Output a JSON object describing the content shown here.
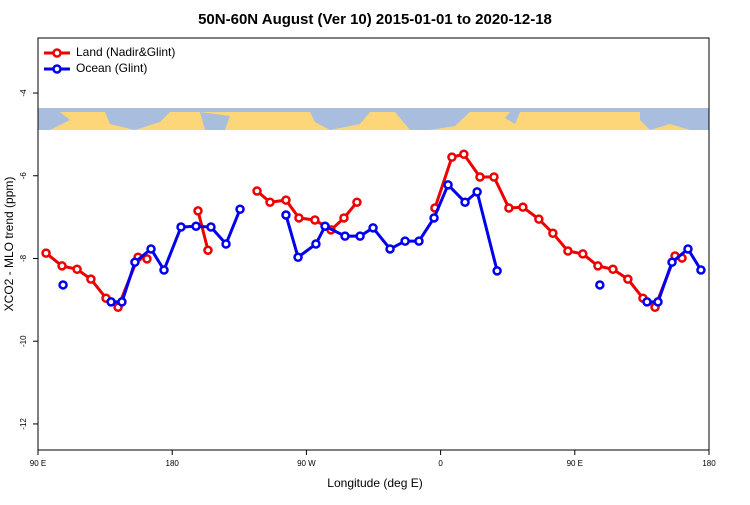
{
  "chart_data": {
    "type": "line",
    "title": "50N-60N August (Ver 10)   2015-01-01 to 2020-12-18",
    "x_label": "Longitude (deg E)",
    "y_label": "XCO2 - MLO trend (ppm)",
    "xlim": [
      90,
      540
    ],
    "xticks": [
      {
        "value": 90,
        "label": "90 E"
      },
      {
        "value": 180,
        "label": "180"
      },
      {
        "value": 270,
        "label": "90 W"
      },
      {
        "value": 360,
        "label": "0"
      },
      {
        "value": 450,
        "label": "90 E"
      },
      {
        "value": 540,
        "label": "180"
      }
    ],
    "ylim": [
      -12.63,
      -2.67
    ],
    "yticks": [
      -12,
      -10,
      -8,
      -6,
      -4
    ],
    "legend": "top-left",
    "series": [
      {
        "name": "Land (Nadir&Glint)",
        "color": "#ee0000",
        "x": [
          95.4,
          106.1,
          116.2,
          125.5,
          135.6,
          143.7,
          157.1,
          163.1,
          null,
          197.3,
          204.0,
          null,
          236.9,
          245.6,
          256.3,
          265.0,
          275.7,
          286.5,
          295.2,
          303.9,
          null,
          356.2,
          367.6,
          375.6,
          386.4,
          395.8,
          405.8,
          415.2,
          425.9,
          435.3,
          445.4,
          455.4,
          465.5,
          475.6,
          485.6,
          495.7,
          503.8,
          517.2,
          521.9
        ],
        "values": [
          -7.87,
          -8.18,
          -8.26,
          -8.5,
          -8.96,
          -9.18,
          -7.97,
          -8.01,
          null,
          -6.85,
          -7.8,
          null,
          -6.37,
          -6.64,
          -6.59,
          -7.02,
          -7.07,
          -7.31,
          -7.02,
          -6.64,
          null,
          -6.78,
          -5.55,
          -5.48,
          -6.03,
          -6.03,
          -6.78,
          -6.76,
          -7.05,
          -7.39,
          -7.82,
          -7.89,
          -8.18,
          -8.26,
          -8.5,
          -8.96,
          -9.18,
          -7.94,
          -7.99
        ]
      },
      {
        "name": "Ocean (Glint)",
        "color": "#0000ee",
        "x": [
          106.8,
          null,
          139.0,
          146.3,
          155.0,
          165.8,
          174.5,
          185.9,
          196.0,
          206.0,
          216.1,
          225.5,
          null,
          256.3,
          264.4,
          276.4,
          282.5,
          295.9,
          306.0,
          314.7,
          326.1,
          336.2,
          345.5,
          355.6,
          365.0,
          376.4,
          384.5,
          397.9,
          null,
          466.8,
          null,
          498.4,
          505.8,
          515.2,
          525.9,
          534.6
        ],
        "values": [
          -8.64,
          null,
          -9.05,
          -9.05,
          -8.09,
          -7.77,
          -8.28,
          -7.24,
          -7.22,
          -7.24,
          -7.65,
          -6.81,
          null,
          -6.95,
          -7.97,
          -7.65,
          -7.22,
          -7.46,
          -7.46,
          -7.26,
          -7.77,
          -7.58,
          -7.58,
          -7.02,
          -6.22,
          -6.64,
          -6.39,
          -8.3,
          null,
          -8.64,
          null,
          -9.05,
          -9.05,
          -8.09,
          -7.77,
          -8.28
        ]
      }
    ]
  }
}
